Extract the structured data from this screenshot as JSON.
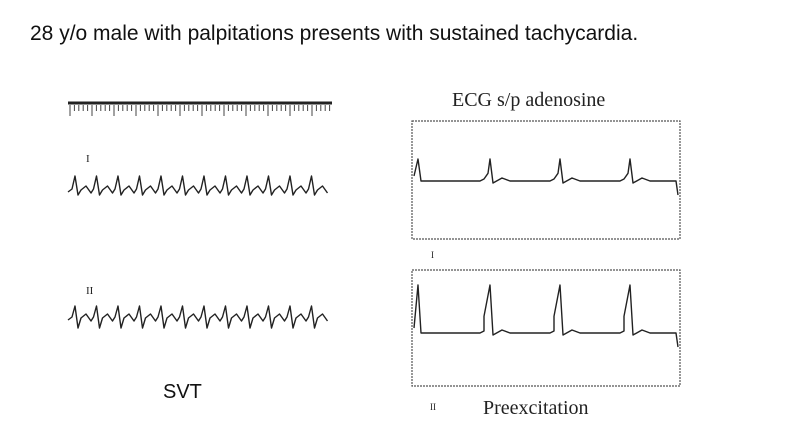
{
  "header": {
    "title": "28 y/o male with palpitations presents with sustained tachycardia."
  },
  "left_panel": {
    "lead_labels": [
      "I",
      "II"
    ],
    "caption": "SVT"
  },
  "right_panel": {
    "title": "ECG s/p adenosine",
    "lead_labels": [
      "I",
      "II"
    ],
    "caption": "Preexcitation"
  }
}
